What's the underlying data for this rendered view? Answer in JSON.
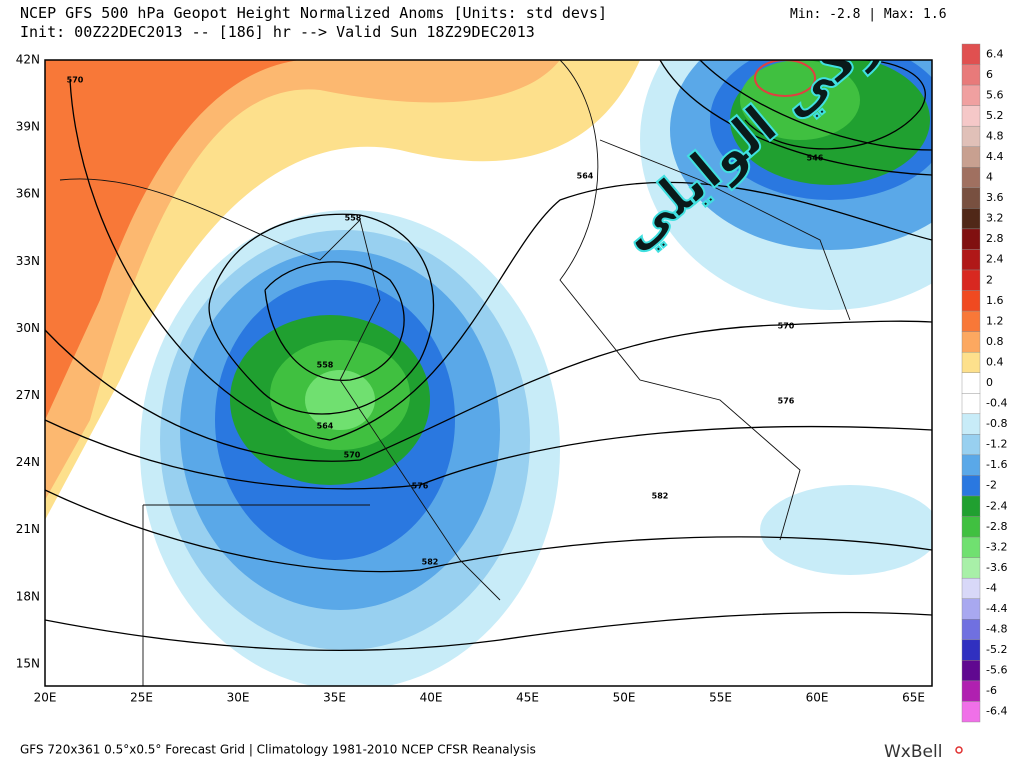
{
  "header": {
    "title": "NCEP GFS 500 hPa Geopot Height Normalized Anoms [Units: std devs]",
    "init": "Init: 00Z22DEC2013 -- [186] hr --> Valid Sun 18Z29DEC2013",
    "minmax": "Min:  -2.8 | Max:   1.6"
  },
  "map": {
    "lat_labels": [
      "42N",
      "39N",
      "36N",
      "33N",
      "30N",
      "27N",
      "24N",
      "21N",
      "18N",
      "15N"
    ],
    "lon_labels": [
      "20E",
      "25E",
      "30E",
      "35E",
      "40E",
      "45E",
      "50E",
      "55E",
      "60E",
      "65E"
    ],
    "contour_labels": [
      "570",
      "558",
      "558",
      "564",
      "570",
      "576",
      "582",
      "582",
      "576",
      "570",
      "564",
      "546"
    ],
    "watermark": "تركي الوايلي"
  },
  "colorbar": {
    "labels": [
      "6.4",
      "6",
      "5.6",
      "5.2",
      "4.8",
      "4.4",
      "4",
      "3.6",
      "3.2",
      "2.8",
      "2.4",
      "2",
      "1.6",
      "1.2",
      "0.8",
      "0.4",
      "0",
      "-0.4",
      "-0.8",
      "-1.2",
      "-1.6",
      "-2",
      "-2.4",
      "-2.8",
      "-3.2",
      "-3.6",
      "-4",
      "-4.4",
      "-4.8",
      "-5.2",
      "-5.6",
      "-6",
      "-6.4"
    ],
    "colors": [
      "#e05050",
      "#e87a7a",
      "#f0a0a0",
      "#f5c8c8",
      "#e0c0b8",
      "#c8a090",
      "#a07060",
      "#785040",
      "#502818",
      "#801010",
      "#b01818",
      "#d82820",
      "#f04a20",
      "#f87838",
      "#fca860",
      "#fde08c",
      "#ffffff",
      "#ffffff",
      "#c8ecf8",
      "#98d0f0",
      "#5aa8e8",
      "#2a78e0",
      "#20a030",
      "#40c040",
      "#70e070",
      "#a8f0a8",
      "#d8d8f8",
      "#a8a8f0",
      "#7070e0",
      "#3030c0",
      "#600890",
      "#b020b0",
      "#f070e8"
    ]
  },
  "footer": "GFS 720x361 0.5°x0.5° Forecast Grid | Climatology 1981-2010 NCEP CFSR Reanalysis",
  "logo": "WxBell"
}
